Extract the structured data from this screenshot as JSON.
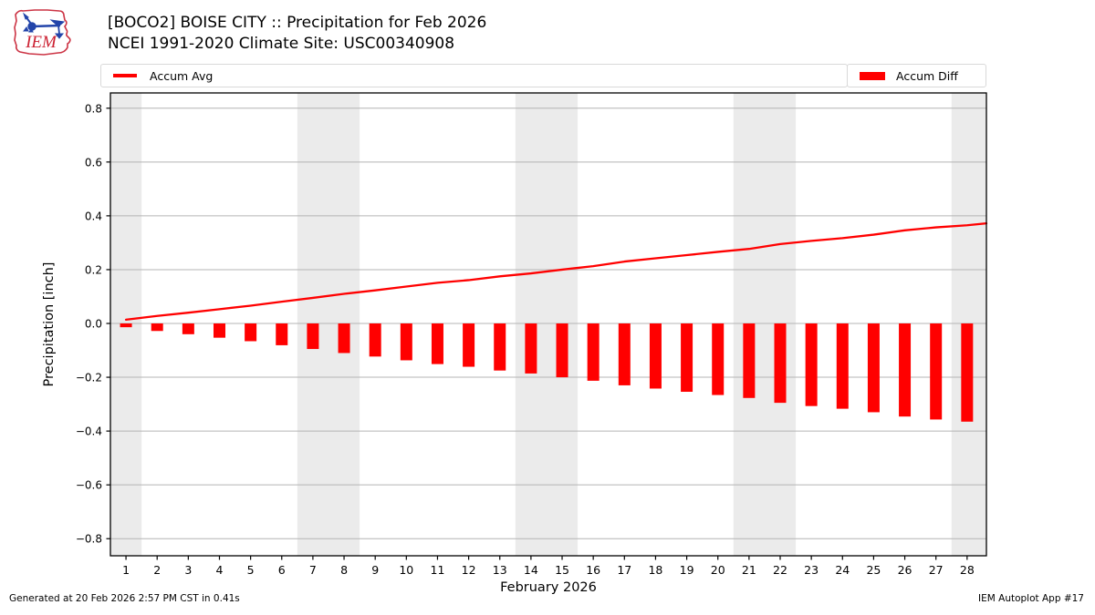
{
  "header": {
    "title_line1": "[BOCO2] BOISE CITY :: Precipitation for Feb 2026",
    "title_line2": "NCEI 1991-2020 Climate Site: USC00340908",
    "logo_text": "IEM"
  },
  "legend": {
    "avg_label": "Accum Avg",
    "diff_label": "Accum Diff"
  },
  "footer": {
    "generated": "Generated at 20 Feb 2026 2:57 PM CST in 0.41s",
    "app": "IEM Autoplot App #17"
  },
  "colors": {
    "accent_red": "#ff0000",
    "weekend_band": "#ebebeb",
    "gridline": "#b4b4b4",
    "axis": "#000000",
    "logo_red": "#cc2233",
    "logo_blue": "#2244aa"
  },
  "chart_data": {
    "type": "bar",
    "title": "[BOCO2] BOISE CITY :: Precipitation for Feb 2026",
    "subtitle": "NCEI 1991-2020 Climate Site: USC00340908",
    "xlabel": "February 2026",
    "ylabel": "Precipitation [inch]",
    "x_days": [
      1,
      2,
      3,
      4,
      5,
      6,
      7,
      8,
      9,
      10,
      11,
      12,
      13,
      14,
      15,
      16,
      17,
      18,
      19,
      20,
      21,
      22,
      23,
      24,
      25,
      26,
      27,
      28
    ],
    "series": [
      {
        "name": "Accum Avg",
        "type": "line",
        "values": [
          0.014,
          0.028,
          0.04,
          0.053,
          0.066,
          0.081,
          0.095,
          0.11,
          0.123,
          0.137,
          0.151,
          0.161,
          0.175,
          0.186,
          0.2,
          0.213,
          0.23,
          0.242,
          0.254,
          0.266,
          0.277,
          0.295,
          0.307,
          0.317,
          0.33,
          0.346,
          0.357,
          0.365
        ]
      },
      {
        "name": "Accum Diff",
        "type": "bar",
        "values": [
          -0.014,
          -0.028,
          -0.04,
          -0.053,
          -0.066,
          -0.081,
          -0.095,
          -0.11,
          -0.123,
          -0.137,
          -0.151,
          -0.161,
          -0.175,
          -0.186,
          -0.2,
          -0.213,
          -0.23,
          -0.242,
          -0.254,
          -0.266,
          -0.277,
          -0.295,
          -0.307,
          -0.317,
          -0.33,
          -0.346,
          -0.357,
          -0.365
        ]
      }
    ],
    "line_extension": [
      28.62,
      0.372
    ],
    "ylim": [
      -0.864,
      0.858
    ],
    "yticks": [
      0.8,
      0.6,
      0.4,
      0.2,
      0.0,
      -0.2,
      -0.4,
      -0.6,
      -0.8
    ],
    "x_domain": [
      0.5,
      28.62
    ],
    "weekend_bands": [
      [
        0.5,
        1.5
      ],
      [
        6.5,
        8.5
      ],
      [
        13.5,
        15.5
      ],
      [
        20.5,
        22.5
      ],
      [
        27.5,
        28.62
      ]
    ],
    "grid": true,
    "legend_position": "top"
  }
}
